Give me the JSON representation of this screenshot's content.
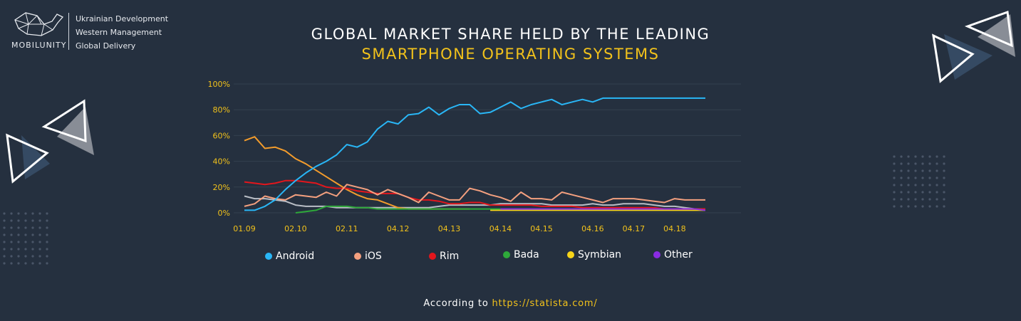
{
  "brand": {
    "name": "MOBILUNITY",
    "lines": [
      "Ukrainian Development",
      "Western Management",
      "Global Delivery"
    ]
  },
  "footer": {
    "prefix": "According to",
    "link": "https://statista.com/"
  },
  "colors": {
    "background": "#25303f",
    "accent": "#f2c21b",
    "android": "#29b6f6",
    "ios": "#f4a07f",
    "rim": "#e3161c",
    "bada": "#2ea83a",
    "symbian": "#f7d419",
    "other": "#8a2be2",
    "unlabeled": "#b9bec6",
    "orange": "#f39c2c"
  },
  "chart_data": {
    "type": "line",
    "title_line1": "GLOBAL MARKET SHARE HELD BY THE LEADING",
    "title_line2": "SMARTPHONE OPERATING SYSTEMS",
    "xlabel": "",
    "ylabel": "",
    "ylim": [
      0,
      100
    ],
    "y_ticks": [
      "0%",
      "20%",
      "40%",
      "60%",
      "80%",
      "100%"
    ],
    "x_ticks": [
      {
        "label": "01.09",
        "i": 0
      },
      {
        "label": "02.10",
        "i": 5
      },
      {
        "label": "02.11",
        "i": 10
      },
      {
        "label": "04.12",
        "i": 15
      },
      {
        "label": "04.13",
        "i": 20
      },
      {
        "label": "04.14",
        "i": 25
      },
      {
        "label": "04.15",
        "i": 29
      },
      {
        "label": "04.16",
        "i": 34
      },
      {
        "label": "04.17",
        "i": 38
      },
      {
        "label": "04.18",
        "i": 42
      }
    ],
    "grid": true,
    "legend_position": "bottom",
    "series": [
      {
        "name": "",
        "color": "#b9bec6",
        "values": [
          13,
          11,
          11,
          10,
          9,
          6,
          5,
          5,
          5,
          4,
          4,
          4,
          4,
          4,
          4,
          4,
          4,
          4,
          4,
          5,
          6,
          6,
          6,
          6,
          6,
          7,
          7,
          7,
          7,
          7,
          6,
          6,
          6,
          6,
          7,
          6,
          6,
          7,
          7,
          7,
          6,
          5,
          5,
          4,
          3,
          3
        ]
      },
      {
        "name": "",
        "color": "#f39c2c",
        "values": [
          56,
          59,
          50,
          51,
          48,
          42,
          38,
          33,
          28,
          23,
          18,
          14,
          11,
          10,
          7,
          4,
          3,
          3,
          3,
          3,
          3,
          3,
          3,
          null,
          null,
          null,
          null,
          null,
          null,
          null,
          null,
          null,
          null,
          null,
          null,
          null,
          null,
          null,
          null,
          null,
          null,
          null,
          null,
          null,
          null,
          null
        ]
      },
      {
        "name": "Symbian",
        "color": "#f7d419",
        "values": [
          null,
          null,
          null,
          null,
          null,
          null,
          null,
          null,
          null,
          null,
          null,
          null,
          null,
          null,
          null,
          null,
          null,
          null,
          null,
          null,
          null,
          null,
          null,
          null,
          2,
          2,
          2,
          2,
          2,
          2,
          2,
          2,
          2,
          2,
          2,
          2,
          2,
          2,
          2,
          2,
          2,
          2,
          2,
          2,
          2,
          2
        ]
      },
      {
        "name": "Bada",
        "color": "#2ea83a",
        "values": [
          null,
          null,
          null,
          null,
          null,
          0,
          1,
          2,
          5,
          5,
          5,
          4,
          4,
          3,
          3,
          3,
          3,
          3,
          3,
          3,
          3,
          3,
          3,
          3,
          3,
          3,
          3,
          3,
          3,
          3,
          3,
          3,
          3,
          3,
          3,
          3,
          3,
          3,
          3,
          3,
          3,
          3,
          3,
          3,
          3,
          3
        ]
      },
      {
        "name": "Rim",
        "color": "#e3161c",
        "values": [
          24,
          23,
          22,
          23,
          25,
          25,
          24,
          23,
          20,
          19,
          19,
          17,
          16,
          15,
          15,
          15,
          12,
          10,
          10,
          9,
          7,
          7,
          8,
          8,
          6,
          6,
          6,
          6,
          6,
          5,
          5,
          5,
          5,
          4,
          4,
          4,
          4,
          4,
          4,
          4,
          4,
          3,
          3,
          3,
          3,
          3
        ]
      },
      {
        "name": "iOS",
        "color": "#f4a07f",
        "values": [
          5,
          7,
          13,
          11,
          10,
          14,
          13,
          12,
          16,
          13,
          22,
          20,
          18,
          14,
          18,
          15,
          12,
          8,
          16,
          13,
          10,
          10,
          19,
          17,
          14,
          12,
          9,
          16,
          11,
          11,
          10,
          16,
          14,
          12,
          10,
          8,
          11,
          11,
          11,
          10,
          9,
          8,
          11,
          10,
          10,
          10
        ]
      },
      {
        "name": "Other",
        "color": "#8a2be2",
        "values": [
          null,
          null,
          null,
          null,
          null,
          null,
          null,
          null,
          null,
          null,
          null,
          null,
          null,
          null,
          null,
          null,
          null,
          null,
          null,
          null,
          null,
          null,
          null,
          null,
          null,
          3,
          3,
          3,
          3,
          3,
          3,
          3,
          3,
          3,
          3,
          3,
          3,
          3,
          3,
          3,
          3,
          3,
          3,
          3,
          3,
          2
        ]
      },
      {
        "name": "Android",
        "color": "#29b6f6",
        "values": [
          2,
          2,
          5,
          10,
          18,
          25,
          31,
          36,
          40,
          45,
          53,
          51,
          55,
          65,
          71,
          69,
          76,
          77,
          82,
          76,
          81,
          84,
          84,
          77,
          78,
          82,
          86,
          81,
          84,
          86,
          88,
          84,
          86,
          88,
          86,
          89,
          89,
          89,
          89,
          89,
          89,
          89,
          89,
          89,
          89,
          89
        ]
      }
    ],
    "legend": [
      {
        "name": "Android",
        "color": "#29b6f6"
      },
      {
        "name": "iOS",
        "color": "#f4a07f"
      },
      {
        "name": "Rim",
        "color": "#e3161c"
      },
      {
        "name": "Bada",
        "color": "#2ea83a"
      },
      {
        "name": "Symbian",
        "color": "#f7d419"
      },
      {
        "name": "Other",
        "color": "#8a2be2"
      }
    ]
  }
}
